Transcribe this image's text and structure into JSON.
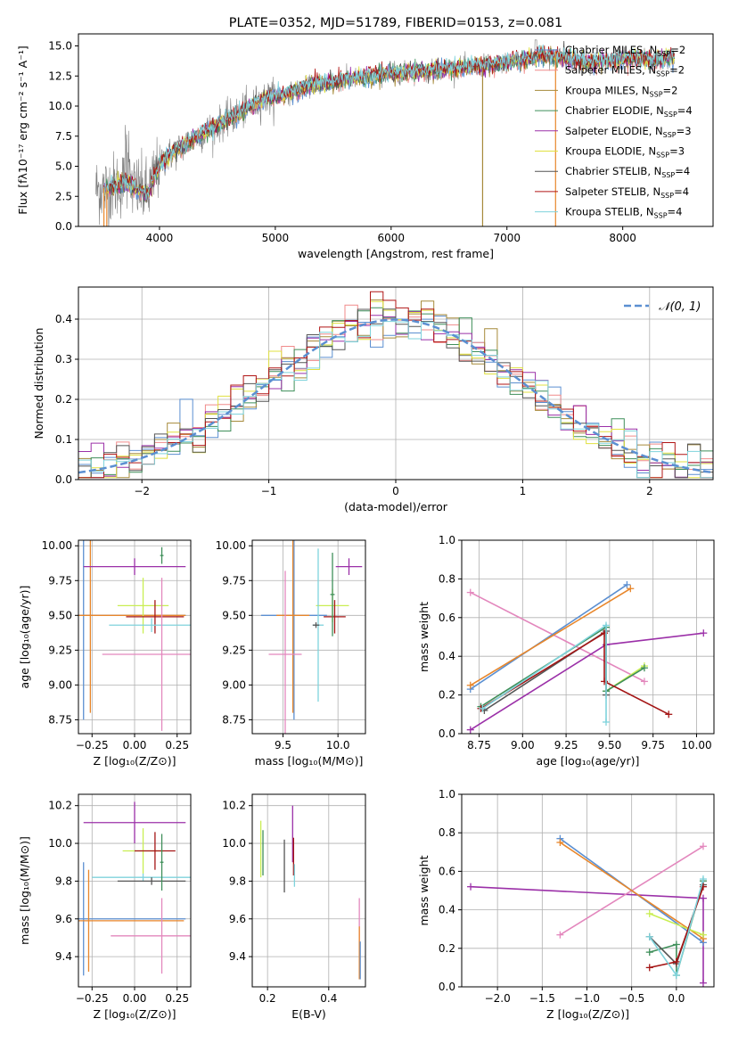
{
  "colors": {
    "Chabrier MILES": "#5b8fd1",
    "Salpeter MILES": "#f08a8a",
    "Kroupa MILES": "#a68a3a",
    "Chabrier ELODIE": "#3f8f5a",
    "Salpeter ELODIE": "#9b30a8",
    "Kroupa ELODIE": "#e0e040",
    "Chabrier STELIB": "#555555",
    "Salpeter STELIB": "#b01515",
    "Kroupa STELIB": "#7fd3dc",
    "orange": "#e8862a",
    "pink": "#e387bd",
    "purple": "#9b30a8",
    "lime": "#c9ee52",
    "green": "#3f8f5a",
    "darkred": "#a41515",
    "cyan": "#7fd3dc",
    "blue": "#5b8fd1",
    "gray": "#555555",
    "obs": "#808080"
  },
  "chart_data": [
    {
      "id": "spectrum",
      "type": "line",
      "title": "PLATE=0352, MJD=51789, FIBERID=0153, z=0.081",
      "xlabel": "wavelength [Angstrom, rest frame]",
      "ylabel": "Flux [fλ10⁻¹⁷ erg cm⁻² s⁻¹ A⁻¹]",
      "xlim": [
        3300,
        8780
      ],
      "ylim": [
        0,
        16
      ],
      "xticks": [
        4000,
        5000,
        6000,
        7000,
        8000
      ],
      "yticks": [
        0.0,
        2.5,
        5.0,
        7.5,
        10.0,
        12.5,
        15.0
      ],
      "legend": [
        {
          "label": "Chabrier MILES, N",
          "sub": "SSP",
          "tail": "=2",
          "color": "#5b8fd1"
        },
        {
          "label": "Salpeter MILES, N",
          "sub": "SSP",
          "tail": "=2",
          "color": "#f08a8a"
        },
        {
          "label": "Kroupa MILES, N",
          "sub": "SSP",
          "tail": "=2",
          "color": "#a68a3a"
        },
        {
          "label": "Chabrier ELODIE, N",
          "sub": "SSP",
          "tail": "=4",
          "color": "#3f8f5a"
        },
        {
          "label": "Salpeter ELODIE, N",
          "sub": "SSP",
          "tail": "=3",
          "color": "#9b30a8"
        },
        {
          "label": "Kroupa ELODIE, N",
          "sub": "SSP",
          "tail": "=3",
          "color": "#e0e040"
        },
        {
          "label": "Chabrier STELIB, N",
          "sub": "SSP",
          "tail": "=4",
          "color": "#555555"
        },
        {
          "label": "Salpeter STELIB, N",
          "sub": "SSP",
          "tail": "=4",
          "color": "#b01515"
        },
        {
          "label": "Kroupa STELIB, N",
          "sub": "SSP",
          "tail": "=4",
          "color": "#7fd3dc"
        }
      ],
      "continuum": [
        [
          3520,
          3.1
        ],
        [
          3700,
          3.6
        ],
        [
          3900,
          2.7
        ],
        [
          4000,
          5.2
        ],
        [
          4100,
          6.0
        ],
        [
          4300,
          7.3
        ],
        [
          4500,
          8.4
        ],
        [
          4700,
          9.5
        ],
        [
          4900,
          10.6
        ],
        [
          5100,
          11.0
        ],
        [
          5300,
          11.7
        ],
        [
          5500,
          12.0
        ],
        [
          5700,
          12.3
        ],
        [
          5900,
          12.6
        ],
        [
          6100,
          12.8
        ],
        [
          6300,
          12.9
        ],
        [
          6500,
          13.1
        ],
        [
          6700,
          13.3
        ],
        [
          6900,
          13.5
        ],
        [
          7100,
          13.8
        ],
        [
          7300,
          14.2
        ],
        [
          7500,
          14.0
        ],
        [
          7700,
          13.6
        ],
        [
          7900,
          13.8
        ],
        [
          8100,
          14.0
        ],
        [
          8300,
          13.8
        ],
        [
          8450,
          14.1
        ]
      ],
      "model_range": [
        3520,
        8450
      ],
      "obs_range": [
        3450,
        8420
      ]
    },
    {
      "id": "residuals",
      "type": "histogram",
      "xlabel": "(data-model)/error",
      "ylabel": "Normed distribution",
      "xlim": [
        -2.5,
        2.5
      ],
      "ylim": [
        0,
        0.48
      ],
      "xticks": [
        -2,
        -1,
        0,
        1,
        2
      ],
      "yticks": [
        0.0,
        0.1,
        0.2,
        0.3,
        0.4
      ],
      "legend": "𝒩(0, 1)",
      "gaussian": {
        "mu": 0,
        "sigma": 1,
        "color": "#5b8fd1"
      },
      "bin_width": 0.1,
      "series_colors": [
        "#5b8fd1",
        "#f08a8a",
        "#a68a3a",
        "#3f8f5a",
        "#9b30a8",
        "#e0e040",
        "#555555",
        "#b01515",
        "#7fd3dc"
      ]
    },
    {
      "id": "age_vs_Z",
      "type": "errorbar",
      "xlabel": "Z [log₁₀(Z/Z⊙)]",
      "ylabel": "age  [log₁₀(age/yr)]",
      "xlim": [
        -0.33,
        0.33
      ],
      "ylim": [
        8.65,
        10.04
      ],
      "xticks": [
        -0.25,
        0.0,
        0.25
      ],
      "yticks": [
        8.75,
        9.0,
        9.25,
        9.5,
        9.75,
        10.0
      ],
      "points": [
        {
          "x": -0.3,
          "y": 9.5,
          "xerr": 0.6,
          "yerr": 0.75,
          "color": "#5b8fd1"
        },
        {
          "x": -0.26,
          "y": 9.5,
          "xerr": 0.56,
          "yerr": 0.7,
          "color": "#e8862a"
        },
        {
          "x": 0.0,
          "y": 9.85,
          "xerr": 0.3,
          "yerr": 0.06,
          "color": "#9b30a8"
        },
        {
          "x": 0.05,
          "y": 9.57,
          "xerr": 0.15,
          "yerr": 0.2,
          "color": "#c9ee52"
        },
        {
          "x": 0.12,
          "y": 9.49,
          "xerr": 0.17,
          "yerr": 0.12,
          "color": "#a41515"
        },
        {
          "x": 0.1,
          "y": 9.43,
          "xerr": 0.25,
          "yerr": 0.05,
          "color": "#7fd3dc"
        },
        {
          "x": 0.16,
          "y": 9.22,
          "xerr": 0.35,
          "yerr": 0.55,
          "color": "#e387bd"
        },
        {
          "x": 0.16,
          "y": 9.93,
          "xerr": 0.01,
          "yerr": 0.06,
          "color": "#3f8f5a"
        }
      ]
    },
    {
      "id": "age_vs_mass",
      "type": "errorbar",
      "xlabel": "mass [log₁₀(M/M⊙)]",
      "ylabel": "",
      "xlim": [
        9.22,
        10.25
      ],
      "ylim": [
        8.65,
        10.04
      ],
      "xticks": [
        9.5,
        10.0
      ],
      "yticks": [
        8.75,
        9.0,
        9.25,
        9.5,
        9.75,
        10.0
      ],
      "points": [
        {
          "x": 9.6,
          "y": 9.5,
          "xerr": 0.3,
          "yerr": 0.75,
          "color": "#5b8fd1"
        },
        {
          "x": 9.59,
          "y": 9.5,
          "xerr": 0.15,
          "yerr": 0.7,
          "color": "#e8862a"
        },
        {
          "x": 9.52,
          "y": 9.22,
          "xerr": 0.15,
          "yerr": 0.6,
          "color": "#e387bd"
        },
        {
          "x": 10.1,
          "y": 9.85,
          "xerr": 0.12,
          "yerr": 0.06,
          "color": "#9b30a8"
        },
        {
          "x": 9.95,
          "y": 9.57,
          "xerr": 0.15,
          "yerr": 0.12,
          "color": "#c9ee52"
        },
        {
          "x": 9.97,
          "y": 9.49,
          "xerr": 0.1,
          "yerr": 0.12,
          "color": "#a41515"
        },
        {
          "x": 9.82,
          "y": 9.43,
          "xerr": 0.05,
          "yerr": 0.55,
          "color": "#7fd3dc"
        },
        {
          "x": 9.95,
          "y": 9.65,
          "xerr": 0.02,
          "yerr": 0.3,
          "color": "#3f8f5a"
        },
        {
          "x": 9.8,
          "y": 9.43,
          "xerr": 0.03,
          "yerr": 0.02,
          "color": "#555555"
        }
      ]
    },
    {
      "id": "weight_vs_age",
      "type": "line",
      "xlabel": "age  [log₁₀(age/yr)]",
      "ylabel": "mass weight",
      "xlim": [
        8.65,
        10.1
      ],
      "ylim": [
        0,
        1
      ],
      "xticks": [
        8.75,
        9.0,
        9.25,
        9.5,
        9.75,
        10.0
      ],
      "yticks": [
        0.0,
        0.2,
        0.4,
        0.6,
        0.8,
        1.0
      ],
      "series": [
        {
          "color": "#e387bd",
          "points": [
            [
              8.7,
              0.73
            ],
            [
              9.7,
              0.27
            ]
          ]
        },
        {
          "color": "#5b8fd1",
          "points": [
            [
              8.7,
              0.23
            ],
            [
              9.6,
              0.77
            ]
          ]
        },
        {
          "color": "#e8862a",
          "points": [
            [
              8.7,
              0.25
            ],
            [
              9.62,
              0.75
            ]
          ]
        },
        {
          "color": "#9b30a8",
          "points": [
            [
              8.7,
              0.02
            ],
            [
              9.48,
              0.46
            ],
            [
              10.04,
              0.52
            ]
          ]
        },
        {
          "color": "#c9ee52",
          "points": [
            [
              9.48,
              0.22
            ],
            [
              9.7,
              0.35
            ]
          ]
        },
        {
          "color": "#3f8f5a",
          "points": [
            [
              8.76,
              0.14
            ],
            [
              9.48,
              0.55
            ],
            [
              9.48,
              0.22
            ],
            [
              9.7,
              0.34
            ]
          ]
        },
        {
          "color": "#555555",
          "points": [
            [
              8.78,
              0.12
            ],
            [
              9.48,
              0.53
            ],
            [
              9.48,
              0.2
            ]
          ]
        },
        {
          "color": "#a41515",
          "points": [
            [
              8.76,
              0.13
            ],
            [
              9.47,
              0.52
            ],
            [
              9.47,
              0.27
            ],
            [
              9.84,
              0.1
            ]
          ]
        },
        {
          "color": "#7fd3dc",
          "points": [
            [
              8.77,
              0.13
            ],
            [
              9.48,
              0.56
            ],
            [
              9.48,
              0.06
            ]
          ]
        }
      ]
    },
    {
      "id": "mass_vs_Z",
      "type": "errorbar",
      "xlabel": "Z [log₁₀(Z/Z⊙)]",
      "ylabel": "mass [log₁₀(M/M⊙)]",
      "xlim": [
        -0.33,
        0.33
      ],
      "ylim": [
        9.24,
        10.26
      ],
      "xticks": [
        -0.25,
        0.0,
        0.25
      ],
      "yticks": [
        9.4,
        9.6,
        9.8,
        10.0,
        10.2
      ],
      "points": [
        {
          "x": -0.3,
          "y": 9.6,
          "xerr": 0.6,
          "yerr": 0.3,
          "color": "#5b8fd1"
        },
        {
          "x": -0.27,
          "y": 9.59,
          "xerr": 0.56,
          "yerr": 0.27,
          "color": "#e8862a"
        },
        {
          "x": 0.16,
          "y": 9.51,
          "xerr": 0.3,
          "yerr": 0.2,
          "color": "#e387bd"
        },
        {
          "x": 0.0,
          "y": 10.11,
          "xerr": 0.3,
          "yerr": 0.11,
          "color": "#9b30a8"
        },
        {
          "x": 0.05,
          "y": 9.96,
          "xerr": 0.12,
          "yerr": 0.12,
          "color": "#c9ee52"
        },
        {
          "x": 0.12,
          "y": 9.96,
          "xerr": 0.12,
          "yerr": 0.1,
          "color": "#a41515"
        },
        {
          "x": 0.05,
          "y": 9.82,
          "xerr": 0.3,
          "yerr": 0.02,
          "color": "#7fd3dc"
        },
        {
          "x": 0.1,
          "y": 9.8,
          "xerr": 0.2,
          "yerr": 0.02,
          "color": "#555555"
        },
        {
          "x": 0.16,
          "y": 9.9,
          "xerr": 0.01,
          "yerr": 0.15,
          "color": "#3f8f5a"
        }
      ]
    },
    {
      "id": "mass_vs_ebv",
      "type": "errorbar",
      "xlabel": "E(B-V)",
      "ylabel": "",
      "xlim": [
        0.15,
        0.52
      ],
      "ylim": [
        9.24,
        10.26
      ],
      "xticks": [
        0.2,
        0.4
      ],
      "yticks": [
        9.4,
        9.6,
        9.8,
        10.0,
        10.2
      ],
      "points": [
        {
          "x": 0.178,
          "y": 9.97,
          "xerr": 0,
          "yerr": 0.15,
          "color": "#c9ee52"
        },
        {
          "x": 0.185,
          "y": 9.95,
          "xerr": 0,
          "yerr": 0.12,
          "color": "#3f8f5a"
        },
        {
          "x": 0.255,
          "y": 9.88,
          "xerr": 0,
          "yerr": 0.14,
          "color": "#555555"
        },
        {
          "x": 0.282,
          "y": 10.05,
          "xerr": 0,
          "yerr": 0.15,
          "color": "#9b30a8"
        },
        {
          "x": 0.285,
          "y": 9.93,
          "xerr": 0,
          "yerr": 0.1,
          "color": "#a41515"
        },
        {
          "x": 0.288,
          "y": 9.83,
          "xerr": 0,
          "yerr": 0.06,
          "color": "#7fd3dc"
        },
        {
          "x": 0.5,
          "y": 9.52,
          "xerr": 0,
          "yerr": 0.19,
          "color": "#e387bd"
        },
        {
          "x": 0.5,
          "y": 9.42,
          "xerr": 0,
          "yerr": 0.14,
          "color": "#e8862a"
        },
        {
          "x": 0.503,
          "y": 9.38,
          "xerr": 0,
          "yerr": 0.1,
          "color": "#5b8fd1"
        }
      ]
    },
    {
      "id": "weight_vs_Z",
      "type": "line",
      "xlabel": "Z [log₁₀(Z/Z⊙)]",
      "ylabel": "mass weight",
      "xlim": [
        -2.4,
        0.42
      ],
      "ylim": [
        0,
        1
      ],
      "xticks": [
        -2.0,
        -1.5,
        -1.0,
        -0.5,
        0.0
      ],
      "yticks": [
        0.0,
        0.2,
        0.4,
        0.6,
        0.8,
        1.0
      ],
      "series": [
        {
          "color": "#9b30a8",
          "points": [
            [
              -2.3,
              0.52
            ],
            [
              0.3,
              0.46
            ],
            [
              0.3,
              0.02
            ]
          ]
        },
        {
          "color": "#e387bd",
          "points": [
            [
              -1.3,
              0.27
            ],
            [
              0.3,
              0.73
            ]
          ]
        },
        {
          "color": "#5b8fd1",
          "points": [
            [
              -1.3,
              0.77
            ],
            [
              0.3,
              0.23
            ]
          ]
        },
        {
          "color": "#e8862a",
          "points": [
            [
              -1.3,
              0.75
            ],
            [
              0.3,
              0.25
            ]
          ]
        },
        {
          "color": "#c9ee52",
          "points": [
            [
              -0.3,
              0.38
            ],
            [
              0.3,
              0.27
            ]
          ]
        },
        {
          "color": "#3f8f5a",
          "points": [
            [
              -0.3,
              0.18
            ],
            [
              0.0,
              0.22
            ],
            [
              0.0,
              0.06
            ],
            [
              0.3,
              0.55
            ]
          ]
        },
        {
          "color": "#555555",
          "points": [
            [
              -0.3,
              0.26
            ],
            [
              0.0,
              0.12
            ],
            [
              0.3,
              0.53
            ]
          ]
        },
        {
          "color": "#a41515",
          "points": [
            [
              -0.3,
              0.1
            ],
            [
              0.0,
              0.13
            ],
            [
              0.3,
              0.52
            ]
          ]
        },
        {
          "color": "#7fd3dc",
          "points": [
            [
              -0.3,
              0.26
            ],
            [
              0.0,
              0.06
            ],
            [
              0.3,
              0.56
            ]
          ]
        }
      ]
    }
  ]
}
